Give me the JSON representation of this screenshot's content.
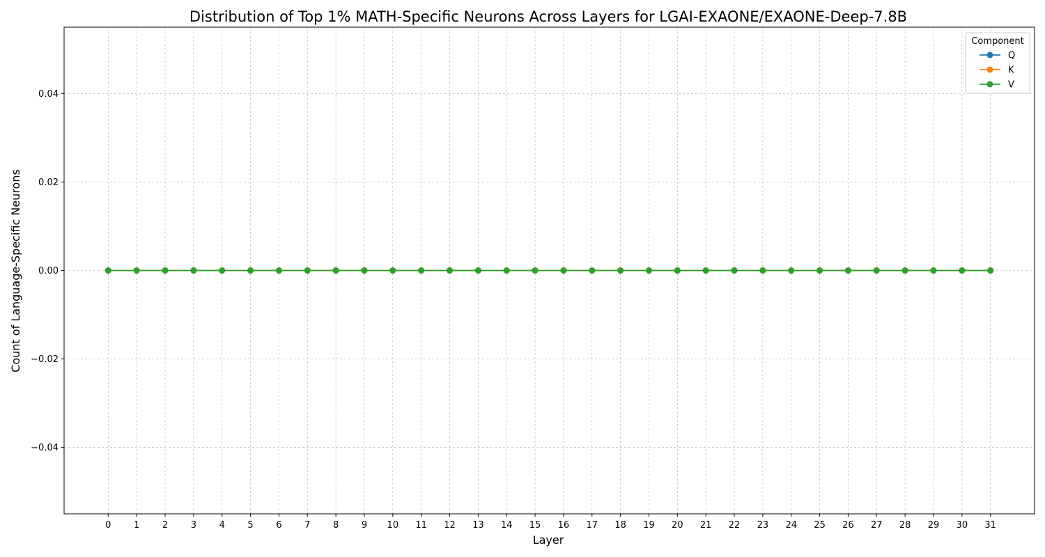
{
  "chart_data": {
    "type": "line",
    "title": "Distribution of Top 1% MATH-Specific Neurons Across Layers for LGAI-EXAONE/EXAONE-Deep-7.8B",
    "xlabel": "Layer",
    "ylabel": "Count of Language-Specific Neurons",
    "x": [
      0,
      1,
      2,
      3,
      4,
      5,
      6,
      7,
      8,
      9,
      10,
      11,
      12,
      13,
      14,
      15,
      16,
      17,
      18,
      19,
      20,
      21,
      22,
      23,
      24,
      25,
      26,
      27,
      28,
      29,
      30,
      31
    ],
    "xlim": [
      -1.55,
      32.55
    ],
    "ylim": [
      -0.055,
      0.055
    ],
    "yticks": [
      -0.04,
      -0.02,
      0.0,
      0.02,
      0.04
    ],
    "ytick_labels": [
      "−0.04",
      "−0.02",
      "0.00",
      "0.02",
      "0.04"
    ],
    "grid": true,
    "legend": {
      "title": "Component",
      "placement": "top-right"
    },
    "series": [
      {
        "name": "Q",
        "color": "#1f77b4",
        "values": [
          0,
          0,
          0,
          0,
          0,
          0,
          0,
          0,
          0,
          0,
          0,
          0,
          0,
          0,
          0,
          0,
          0,
          0,
          0,
          0,
          0,
          0,
          0,
          0,
          0,
          0,
          0,
          0,
          0,
          0,
          0,
          0
        ]
      },
      {
        "name": "K",
        "color": "#ff7f0e",
        "values": [
          0,
          0,
          0,
          0,
          0,
          0,
          0,
          0,
          0,
          0,
          0,
          0,
          0,
          0,
          0,
          0,
          0,
          0,
          0,
          0,
          0,
          0,
          0,
          0,
          0,
          0,
          0,
          0,
          0,
          0,
          0,
          0
        ]
      },
      {
        "name": "V",
        "color": "#2ca02c",
        "values": [
          0,
          0,
          0,
          0,
          0,
          0,
          0,
          0,
          0,
          0,
          0,
          0,
          0,
          0,
          0,
          0,
          0,
          0,
          0,
          0,
          0,
          0,
          0,
          0,
          0,
          0,
          0,
          0,
          0,
          0,
          0,
          0
        ]
      }
    ]
  }
}
